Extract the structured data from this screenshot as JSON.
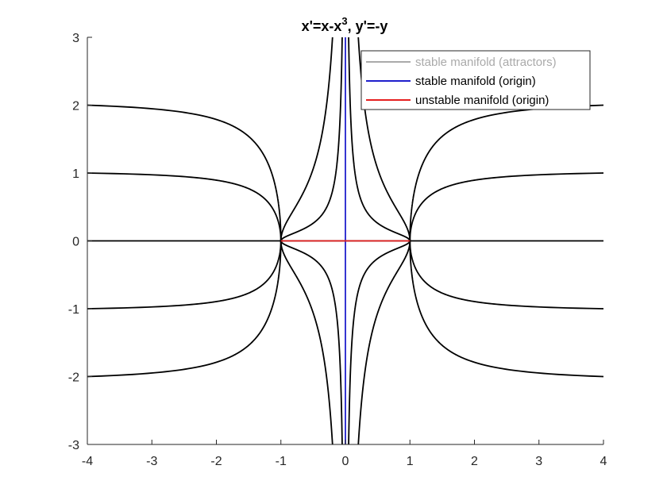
{
  "chart_data": {
    "type": "line",
    "title": "x'=x-x",
    "title_superscript": "3",
    "title_suffix": ", y'=-y",
    "xlabel": "",
    "ylabel": "",
    "xlim": [
      -4,
      4
    ],
    "ylim": [
      -3,
      3
    ],
    "xticks": [
      -4,
      -3,
      -2,
      -1,
      0,
      1,
      2,
      3,
      4
    ],
    "yticks": [
      -3,
      -2,
      -1,
      0,
      1,
      2,
      3
    ],
    "xtick_labels": [
      "-4",
      "-3",
      "-2",
      "-1",
      "0",
      "1",
      "2",
      "3",
      "4"
    ],
    "ytick_labels": [
      "-3",
      "-2",
      "-1",
      "0",
      "1",
      "2",
      "3"
    ],
    "grid": false,
    "legend_position": "top-right",
    "legend": [
      {
        "label": "stable manifold (attractors)",
        "color": "#aaaaaa"
      },
      {
        "label": "stable manifold (origin)",
        "color": "#1f1fcc"
      },
      {
        "label": "unstable manifold (origin)",
        "color": "#e62020"
      }
    ],
    "trajectory_color": "#000000",
    "system": {
      "dx": "x - x^3",
      "dy": "-y"
    },
    "trajectory_seeds": [
      {
        "x0": -4,
        "y0": 2
      },
      {
        "x0": -4,
        "y0": 1
      },
      {
        "x0": -4,
        "y0": -1
      },
      {
        "x0": -4,
        "y0": -2
      },
      {
        "x0": 4,
        "y0": 2
      },
      {
        "x0": 4,
        "y0": 1
      },
      {
        "x0": 4,
        "y0": -1
      },
      {
        "x0": 4,
        "y0": -2
      },
      {
        "x0": -0.05,
        "y0": 3
      },
      {
        "x0": -0.2,
        "y0": 3
      },
      {
        "x0": 0.05,
        "y0": 3
      },
      {
        "x0": 0.2,
        "y0": 3
      },
      {
        "x0": -0.05,
        "y0": -3
      },
      {
        "x0": -0.2,
        "y0": -3
      },
      {
        "x0": 0.05,
        "y0": -3
      },
      {
        "x0": 0.2,
        "y0": -3
      }
    ],
    "axis_lines": [
      {
        "name": "stable-manifold-attractors",
        "x": [
          -4,
          4
        ],
        "y": [
          0,
          0
        ],
        "color": "#000000"
      },
      {
        "name": "stable-manifold-origin",
        "x": [
          0,
          0
        ],
        "y": [
          -3,
          3
        ],
        "color": "#1f1fcc"
      },
      {
        "name": "unstable-manifold-origin",
        "x": [
          -1,
          1
        ],
        "y": [
          0,
          0
        ],
        "color": "#e62020"
      }
    ]
  }
}
